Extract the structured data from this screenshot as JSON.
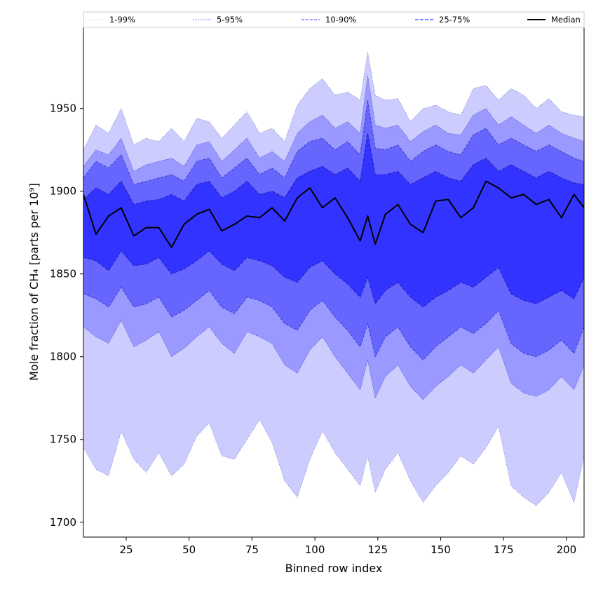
{
  "chart_data": {
    "type": "area",
    "xlabel": "Binned row index",
    "ylabel": "Mole fraction of CH₄ [parts per 10⁹]",
    "xlim": [
      8,
      207
    ],
    "ylim": [
      1691,
      1999
    ],
    "x_ticks": [
      25,
      50,
      75,
      100,
      125,
      150,
      175,
      200
    ],
    "y_ticks": [
      1700,
      1750,
      1800,
      1850,
      1900,
      1950
    ],
    "legend_position": "top (above plot, single row)",
    "grid": false,
    "x": [
      8,
      13,
      18,
      23,
      28,
      33,
      38,
      43,
      48,
      53,
      58,
      63,
      68,
      73,
      78,
      83,
      88,
      93,
      98,
      103,
      108,
      113,
      118,
      121,
      124,
      128,
      133,
      138,
      143,
      148,
      153,
      158,
      163,
      168,
      173,
      178,
      183,
      188,
      193,
      198,
      203,
      207
    ],
    "series": [
      {
        "name": "1-99%",
        "style": "dotted",
        "color": "#ccccff",
        "lower": [
          1745,
          1732,
          1728,
          1755,
          1738,
          1730,
          1742,
          1728,
          1735,
          1752,
          1760,
          1740,
          1738,
          1750,
          1762,
          1748,
          1725,
          1715,
          1738,
          1755,
          1742,
          1732,
          1722,
          1740,
          1718,
          1732,
          1742,
          1725,
          1712,
          1722,
          1730,
          1740,
          1735,
          1745,
          1758,
          1722,
          1715,
          1710,
          1718,
          1730,
          1712,
          1740
        ],
        "upper": [
          1925,
          1940,
          1935,
          1950,
          1928,
          1932,
          1930,
          1938,
          1930,
          1944,
          1942,
          1932,
          1940,
          1948,
          1935,
          1938,
          1930,
          1952,
          1962,
          1968,
          1958,
          1960,
          1955,
          1984,
          1958,
          1955,
          1956,
          1942,
          1950,
          1952,
          1948,
          1946,
          1962,
          1964,
          1955,
          1962,
          1958,
          1950,
          1956,
          1948,
          1946,
          1945
        ]
      },
      {
        "name": "5-95%",
        "style": "dashed-thin",
        "color": "#9999ff",
        "lower": [
          1818,
          1812,
          1808,
          1822,
          1806,
          1810,
          1815,
          1800,
          1805,
          1812,
          1818,
          1808,
          1802,
          1815,
          1812,
          1808,
          1795,
          1790,
          1804,
          1812,
          1800,
          1790,
          1780,
          1798,
          1775,
          1788,
          1795,
          1782,
          1774,
          1782,
          1788,
          1795,
          1790,
          1798,
          1806,
          1784,
          1778,
          1776,
          1780,
          1788,
          1780,
          1795
        ],
        "upper": [
          1915,
          1925,
          1922,
          1932,
          1912,
          1916,
          1918,
          1920,
          1915,
          1928,
          1930,
          1918,
          1925,
          1932,
          1920,
          1924,
          1918,
          1935,
          1942,
          1946,
          1938,
          1942,
          1935,
          1970,
          1940,
          1938,
          1940,
          1930,
          1936,
          1940,
          1935,
          1934,
          1946,
          1950,
          1940,
          1945,
          1940,
          1935,
          1940,
          1935,
          1932,
          1930
        ]
      },
      {
        "name": "10-90%",
        "style": "dashed",
        "color": "#6666ff",
        "lower": [
          1838,
          1835,
          1830,
          1842,
          1830,
          1832,
          1836,
          1824,
          1828,
          1834,
          1840,
          1830,
          1826,
          1836,
          1834,
          1830,
          1820,
          1816,
          1828,
          1834,
          1824,
          1816,
          1806,
          1820,
          1800,
          1812,
          1818,
          1806,
          1798,
          1806,
          1812,
          1818,
          1814,
          1820,
          1828,
          1808,
          1802,
          1800,
          1804,
          1810,
          1802,
          1818
        ],
        "upper": [
          1908,
          1918,
          1914,
          1922,
          1904,
          1906,
          1908,
          1910,
          1906,
          1918,
          1920,
          1908,
          1914,
          1920,
          1910,
          1914,
          1908,
          1924,
          1930,
          1932,
          1925,
          1930,
          1922,
          1955,
          1926,
          1925,
          1928,
          1918,
          1924,
          1928,
          1924,
          1922,
          1934,
          1938,
          1928,
          1932,
          1928,
          1924,
          1928,
          1924,
          1920,
          1918
        ]
      },
      {
        "name": "25-75%",
        "style": "dashed-bold",
        "color": "#3333ff",
        "lower": [
          1860,
          1858,
          1852,
          1864,
          1855,
          1856,
          1860,
          1850,
          1853,
          1858,
          1864,
          1856,
          1852,
          1860,
          1858,
          1855,
          1848,
          1845,
          1854,
          1858,
          1850,
          1844,
          1836,
          1848,
          1832,
          1840,
          1845,
          1836,
          1830,
          1836,
          1840,
          1845,
          1842,
          1848,
          1854,
          1838,
          1834,
          1832,
          1836,
          1840,
          1835,
          1848
        ],
        "upper": [
          1895,
          1902,
          1898,
          1906,
          1892,
          1894,
          1895,
          1898,
          1894,
          1904,
          1906,
          1896,
          1900,
          1906,
          1898,
          1900,
          1896,
          1908,
          1912,
          1915,
          1910,
          1914,
          1906,
          1935,
          1910,
          1910,
          1912,
          1904,
          1908,
          1912,
          1908,
          1906,
          1916,
          1920,
          1912,
          1916,
          1912,
          1908,
          1912,
          1908,
          1905,
          1904
        ]
      },
      {
        "name": "Median",
        "style": "solid",
        "color": "#000000",
        "values": [
          1898,
          1874,
          1885,
          1890,
          1873,
          1878,
          1878,
          1866,
          1880,
          1886,
          1889,
          1876,
          1880,
          1885,
          1884,
          1890,
          1882,
          1896,
          1902,
          1890,
          1896,
          1884,
          1870,
          1885,
          1868,
          1886,
          1892,
          1880,
          1875,
          1894,
          1895,
          1884,
          1890,
          1906,
          1902,
          1896,
          1898,
          1892,
          1895,
          1884,
          1898,
          1890
        ]
      }
    ]
  }
}
